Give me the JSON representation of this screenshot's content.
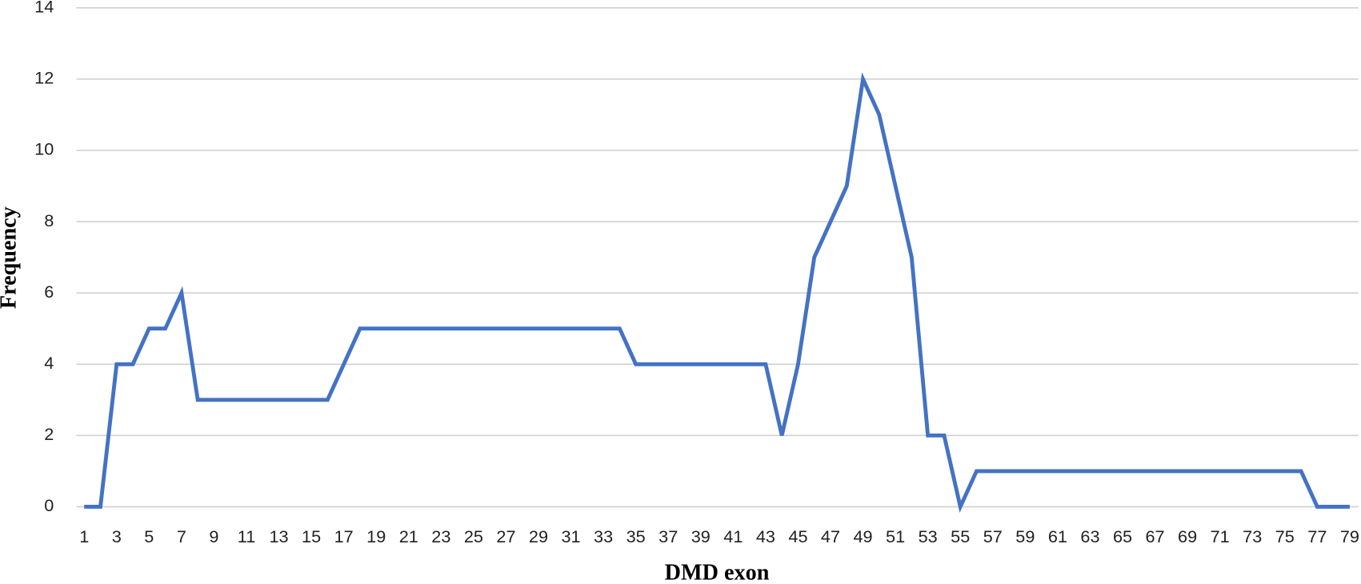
{
  "chart_data": {
    "type": "line",
    "x_label": "DMD exon",
    "y_label": "Frequency",
    "x": [
      1,
      2,
      3,
      4,
      5,
      6,
      7,
      8,
      9,
      10,
      11,
      12,
      13,
      14,
      15,
      16,
      17,
      18,
      19,
      20,
      21,
      22,
      23,
      24,
      25,
      26,
      27,
      28,
      29,
      30,
      31,
      32,
      33,
      34,
      35,
      36,
      37,
      38,
      39,
      40,
      41,
      42,
      43,
      44,
      45,
      46,
      47,
      48,
      49,
      50,
      51,
      52,
      53,
      54,
      55,
      56,
      57,
      58,
      59,
      60,
      61,
      62,
      63,
      64,
      65,
      66,
      67,
      68,
      69,
      70,
      71,
      72,
      73,
      74,
      75,
      76,
      77,
      78,
      79
    ],
    "series": [
      {
        "name": "Frequency",
        "color": "#4472c4",
        "values": [
          0,
          0,
          4,
          4,
          5,
          5,
          6,
          3,
          3,
          3,
          3,
          3,
          3,
          3,
          3,
          3,
          4,
          5,
          5,
          5,
          5,
          5,
          5,
          5,
          5,
          5,
          5,
          5,
          5,
          5,
          5,
          5,
          5,
          5,
          4,
          4,
          4,
          4,
          4,
          4,
          4,
          4,
          4,
          2,
          4,
          7,
          8,
          9,
          12,
          11,
          9,
          7,
          2,
          2,
          0,
          1,
          1,
          1,
          1,
          1,
          1,
          1,
          1,
          1,
          1,
          1,
          1,
          1,
          1,
          1,
          1,
          1,
          1,
          1,
          1,
          1,
          0,
          0,
          0
        ]
      }
    ],
    "xlim": [
      1,
      79
    ],
    "xticks": [
      1,
      3,
      5,
      7,
      9,
      11,
      13,
      15,
      17,
      19,
      21,
      23,
      25,
      27,
      29,
      31,
      33,
      35,
      37,
      39,
      41,
      43,
      45,
      47,
      49,
      51,
      53,
      55,
      57,
      59,
      61,
      63,
      65,
      67,
      69,
      71,
      73,
      75,
      77,
      79
    ],
    "ylim": [
      0,
      14
    ],
    "yticks": [
      0,
      2,
      4,
      6,
      8,
      10,
      12,
      14
    ],
    "grid": true
  }
}
